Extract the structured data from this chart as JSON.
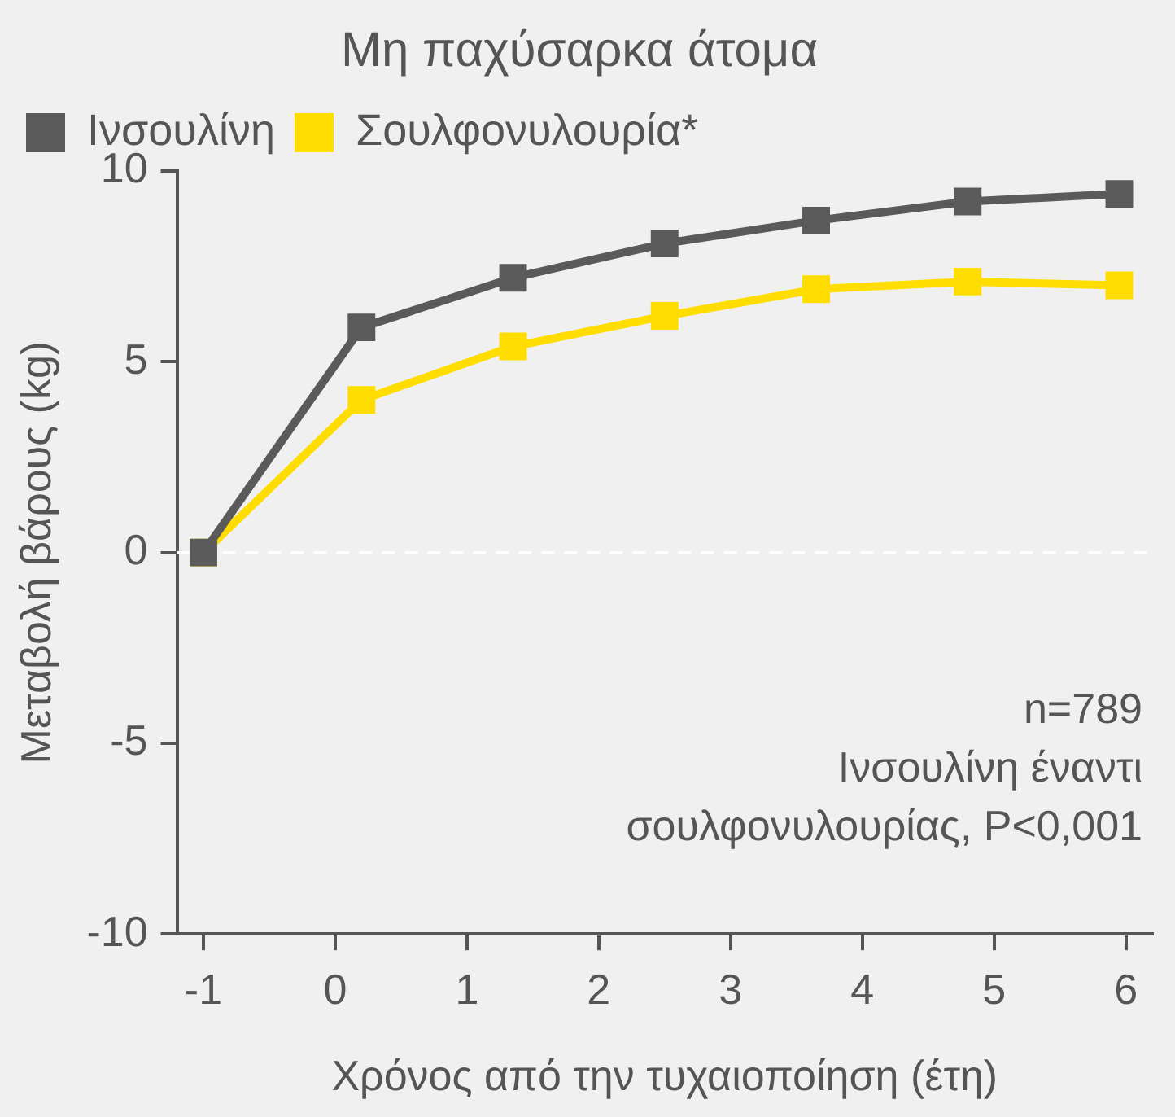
{
  "chart_data": {
    "type": "line",
    "title": "Μη παχύσαρκα άτομα",
    "xlabel": "Χρόνος από την τυχαιοποίηση (έτη)",
    "ylabel": "Μεταβολή βάρους (kg)",
    "x": [
      -1,
      0.2,
      1.35,
      2.5,
      3.65,
      4.8,
      5.95
    ],
    "series": [
      {
        "name": "Ινσουλίνη",
        "color": "#5a5a5a",
        "values": [
          0,
          5.9,
          7.2,
          8.1,
          8.7,
          9.2,
          9.4
        ]
      },
      {
        "name": "Σουλφονυλουρία*",
        "color": "#ffdd00",
        "values": [
          0,
          4.0,
          5.4,
          6.2,
          6.9,
          7.1,
          7.0
        ]
      }
    ],
    "xlim": [
      -1.2,
      6.2
    ],
    "xticks": [
      -1,
      0,
      1,
      2,
      3,
      4,
      5,
      6
    ],
    "ylim": [
      -10,
      10
    ],
    "yticks": [
      -10,
      -5,
      0,
      5,
      10
    ],
    "ref_lines": [
      {
        "axis": "y",
        "value": 0,
        "color": "#ffffff",
        "line_style": "dashed"
      }
    ],
    "annotations": [
      "n=789",
      "Ινσουλίνη έναντι",
      "σουλφονυλουρίας, P<0,001"
    ],
    "marker": "square",
    "line_style": "solid",
    "grid": false,
    "legend": "top"
  }
}
